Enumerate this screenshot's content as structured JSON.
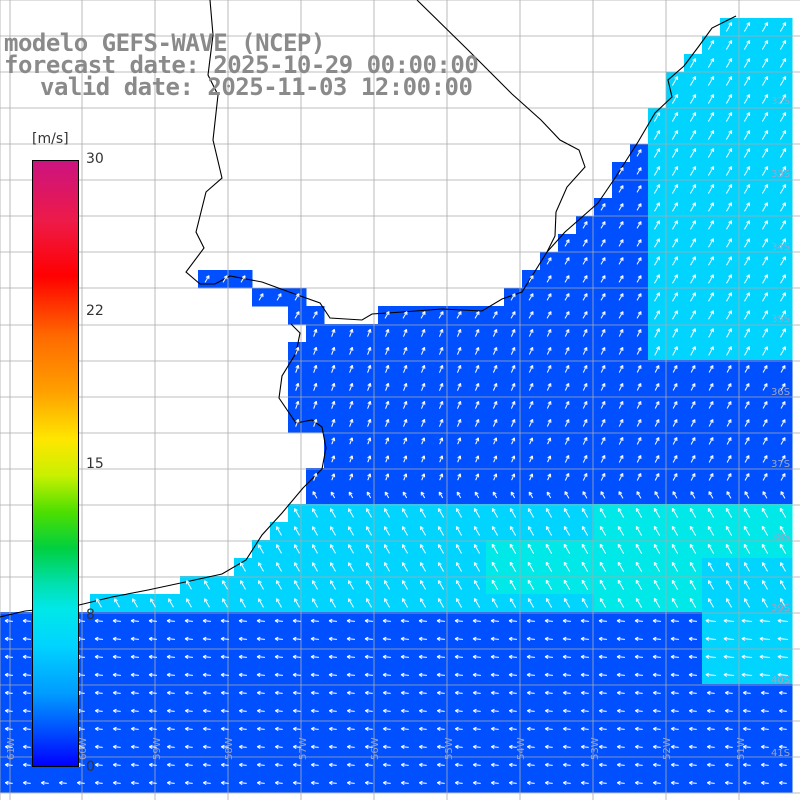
{
  "title": {
    "line1": "modelo GEFS-WAVE (NCEP)",
    "line2": "forecast date: 2025-10-29 00:00:00",
    "line3": "valid date: 2025-11-03 12:00:00"
  },
  "colorbar": {
    "unit": "[m/s]",
    "ticks": [
      {
        "label": "30",
        "value": 30
      },
      {
        "label": "22",
        "value": 22
      },
      {
        "label": "15",
        "value": 15
      },
      {
        "label": "8",
        "value": 8
      },
      {
        "label": "0",
        "value": 0
      }
    ],
    "colors": [
      "#0000ff",
      "#0050ff",
      "#009cff",
      "#00d4ff",
      "#00e8e8",
      "#00e0b0",
      "#00d040",
      "#4ddf00",
      "#c8f000",
      "#ffe600",
      "#ff9f00",
      "#ff6a00",
      "#ff0000",
      "#ee1a48",
      "#cc1380"
    ],
    "range": [
      0,
      30
    ]
  },
  "map_grid": {
    "lon_labels": [
      "61W",
      "60W",
      "59W",
      "58W",
      "57W",
      "56W",
      "55W",
      "54W",
      "53W",
      "52W",
      "51W"
    ],
    "lat_labels": [
      "32S",
      "33S",
      "34S",
      "35S",
      "36S",
      "37S",
      "38S",
      "39S",
      "40S",
      "41S"
    ]
  },
  "map_colors": {
    "land": "#ffffff",
    "coast": "#000000",
    "grid": "#aaaaaa",
    "arrow": "#ffffff",
    "label": "#9aa5c8"
  }
}
